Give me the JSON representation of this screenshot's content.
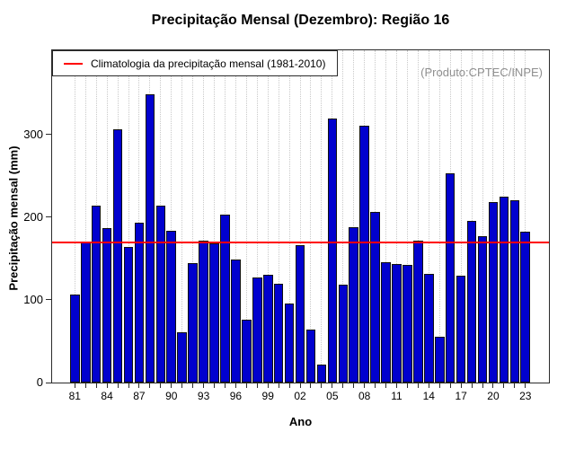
{
  "chart_data": {
    "type": "bar",
    "title": "Precipitação Mensal (Dezembro): Região 16",
    "xlabel": "Ano",
    "ylabel": "Precipitação mensal (mm)",
    "watermark": "(Produto:CPTEC/INPE)",
    "categories": [
      1981,
      1982,
      1983,
      1984,
      1985,
      1986,
      1987,
      1988,
      1989,
      1990,
      1991,
      1992,
      1993,
      1994,
      1995,
      1996,
      1997,
      1998,
      1999,
      2000,
      2001,
      2002,
      2003,
      2004,
      2005,
      2006,
      2007,
      2008,
      2009,
      2010,
      2011,
      2012,
      2013,
      2014,
      2015,
      2016,
      2017,
      2018,
      2019,
      2020,
      2021,
      2022,
      2023
    ],
    "category_labels": [
      "81",
      "82",
      "83",
      "84",
      "85",
      "86",
      "87",
      "88",
      "89",
      "90",
      "91",
      "92",
      "93",
      "94",
      "95",
      "96",
      "97",
      "98",
      "99",
      "00",
      "01",
      "02",
      "03",
      "04",
      "05",
      "06",
      "07",
      "08",
      "09",
      "10",
      "11",
      "12",
      "13",
      "14",
      "15",
      "16",
      "17",
      "18",
      "19",
      "20",
      "21",
      "22",
      "23"
    ],
    "values": [
      106,
      170,
      214,
      187,
      306,
      164,
      193,
      349,
      214,
      184,
      61,
      144,
      172,
      168,
      203,
      149,
      76,
      127,
      130,
      119,
      96,
      166,
      64,
      22,
      319,
      118,
      188,
      311,
      206,
      146,
      143,
      142,
      172,
      132,
      55,
      253,
      129,
      196,
      177,
      218,
      225,
      221,
      182
    ],
    "climatology_value": 170,
    "climatology_label": "Climatologia da precipitação mensal (1981-2010)",
    "ylim": [
      0,
      402
    ],
    "yticks": [
      0,
      100,
      200,
      300
    ],
    "xtick_label_every": 3,
    "bar_color": "#0101ce",
    "bar_border_color": "#101010",
    "line_color": "#ff0000",
    "grid": "vertical-dotted",
    "legend_position": "top-left"
  }
}
